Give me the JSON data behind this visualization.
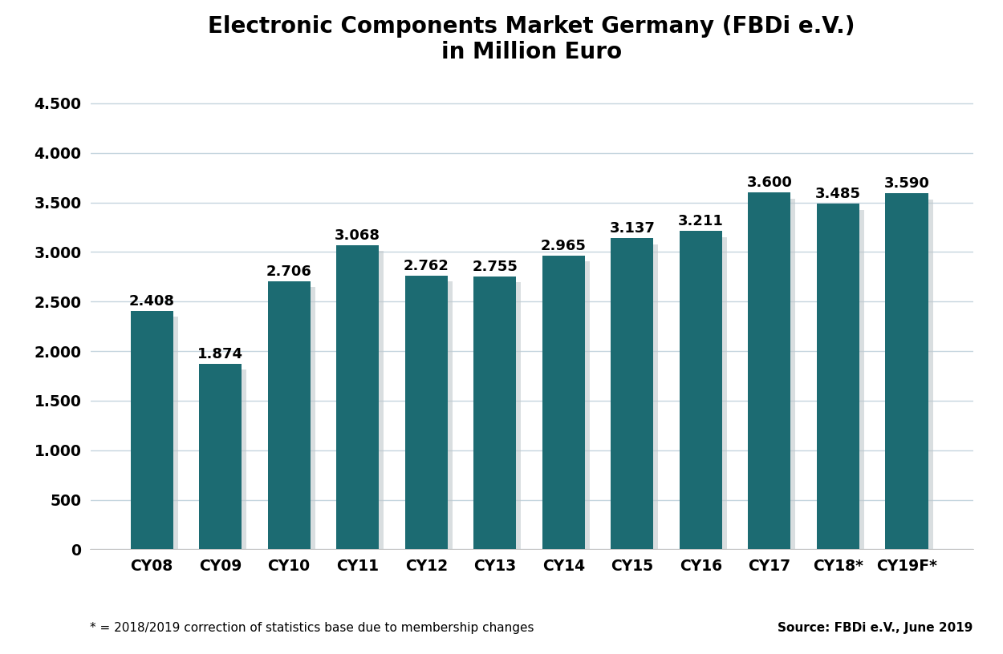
{
  "title_line1": "Electronic Components Market Germany (FBDi e.V.)",
  "title_line2": "in Million Euro",
  "categories": [
    "CY08",
    "CY09",
    "CY10",
    "CY11",
    "CY12",
    "CY13",
    "CY14",
    "CY15",
    "CY16",
    "CY17",
    "CY18*",
    "CY19F*"
  ],
  "values": [
    2408,
    1874,
    2706,
    3068,
    2762,
    2755,
    2965,
    3137,
    3211,
    3600,
    3485,
    3590
  ],
  "labels": [
    "2.408",
    "1.874",
    "2.706",
    "3.068",
    "2.762",
    "2.755",
    "2.965",
    "3.137",
    "3.211",
    "3.600",
    "3.485",
    "3.590"
  ],
  "bar_color": "#1c6b72",
  "shadow_color": "#c0c8cc",
  "background_color": "#ffffff",
  "ylim": [
    0,
    4750
  ],
  "yticks": [
    0,
    500,
    1000,
    1500,
    2000,
    2500,
    3000,
    3500,
    4000,
    4500
  ],
  "ytick_labels": [
    "0",
    "500",
    "1.000",
    "1.500",
    "2.000",
    "2.500",
    "3.000",
    "3.500",
    "4.000",
    "4.500"
  ],
  "grid_color": "#c5d5de",
  "footnote_left": "* = 2018/2019 correction of statistics base due to membership changes",
  "footnote_right": "Source: FBDi e.V., June 2019",
  "title_fontsize": 20,
  "label_fontsize": 13,
  "tick_fontsize": 13.5,
  "footnote_fontsize": 11
}
